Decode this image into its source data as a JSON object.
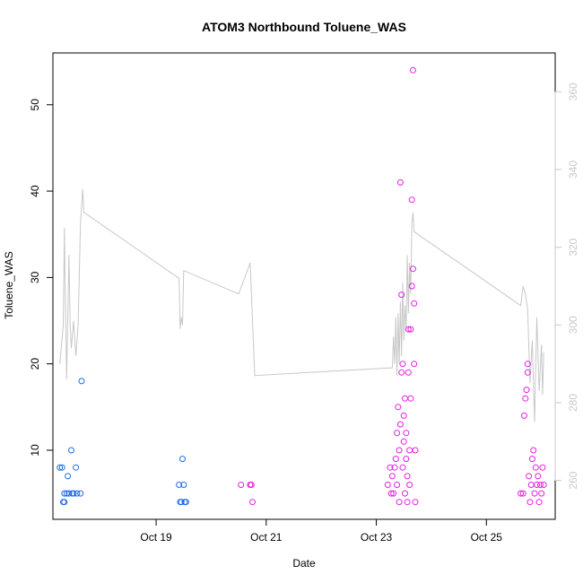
{
  "chart_data": {
    "type": "scatter",
    "title": "ATOM3 Northbound Toluene_WAS",
    "xlabel": "Date",
    "ylabel": "Toluene_WAS",
    "xlim": [
      "2016-10-17T03:00",
      "2016-10-26T06:00"
    ],
    "ylim": [
      2.0,
      56.0
    ],
    "y2lim": [
      250.0,
      370.0
    ],
    "x_ticks": [
      {
        "x": "2016-10-19T00:00",
        "label": "Oct 19"
      },
      {
        "x": "2016-10-21T00:00",
        "label": "Oct 21"
      },
      {
        "x": "2016-10-23T00:00",
        "label": "Oct 23"
      },
      {
        "x": "2016-10-25T00:00",
        "label": "Oct 25"
      }
    ],
    "y_ticks": [
      10,
      20,
      30,
      40,
      50
    ],
    "y2_ticks": [
      260,
      280,
      300,
      320,
      340,
      360
    ],
    "colors": {
      "point_low": "#1e6ce6",
      "point_high": "#e61ee6",
      "line": "#c8c8c8",
      "axis": "#000000"
    },
    "series": [
      {
        "type": "line",
        "axis": "right",
        "color": "#c8c8c8",
        "points": [
          [
            "2016-10-17T06:00",
            290
          ],
          [
            "2016-10-17T07:30",
            300
          ],
          [
            "2016-10-17T08:00",
            325
          ],
          [
            "2016-10-17T08:20",
            310
          ],
          [
            "2016-10-17T09:00",
            286
          ],
          [
            "2016-10-17T10:00",
            318
          ],
          [
            "2016-10-17T10:30",
            300
          ],
          [
            "2016-10-17T11:00",
            294
          ],
          [
            "2016-10-17T12:00",
            301
          ],
          [
            "2016-10-17T13:00",
            292
          ],
          [
            "2016-10-17T14:00",
            300
          ],
          [
            "2016-10-17T15:00",
            326
          ],
          [
            "2016-10-17T16:00",
            335
          ],
          [
            "2016-10-17T16:30",
            329
          ],
          [
            "2016-10-19T10:00",
            312
          ],
          [
            "2016-10-19T10:30",
            299
          ],
          [
            "2016-10-19T11:00",
            302
          ],
          [
            "2016-10-19T11:30",
            300
          ],
          [
            "2016-10-19T12:00",
            314
          ],
          [
            "2016-10-20T12:00",
            308
          ],
          [
            "2016-10-20T17:00",
            316
          ],
          [
            "2016-10-20T19:00",
            287
          ],
          [
            "2016-10-23T07:00",
            289
          ],
          [
            "2016-10-23T07:30",
            297
          ],
          [
            "2016-10-23T08:00",
            290
          ],
          [
            "2016-10-23T08:30",
            302
          ],
          [
            "2016-10-23T09:00",
            287
          ],
          [
            "2016-10-23T09:30",
            303
          ],
          [
            "2016-10-23T10:00",
            290
          ],
          [
            "2016-10-23T10:30",
            306
          ],
          [
            "2016-10-23T11:00",
            292
          ],
          [
            "2016-10-23T11:30",
            311
          ],
          [
            "2016-10-23T12:00",
            296
          ],
          [
            "2016-10-23T12:30",
            305
          ],
          [
            "2016-10-23T13:00",
            299
          ],
          [
            "2016-10-23T13:30",
            318
          ],
          [
            "2016-10-23T14:00",
            303
          ],
          [
            "2016-10-23T14:30",
            316
          ],
          [
            "2016-10-23T15:00",
            308
          ],
          [
            "2016-10-23T15:30",
            326
          ],
          [
            "2016-10-23T16:00",
            329
          ],
          [
            "2016-10-23T16:30",
            324
          ],
          [
            "2016-10-25T15:00",
            305
          ],
          [
            "2016-10-25T16:00",
            310
          ],
          [
            "2016-10-25T17:00",
            308
          ],
          [
            "2016-10-25T18:00",
            304
          ],
          [
            "2016-10-25T19:00",
            285
          ],
          [
            "2016-10-25T20:00",
            296
          ],
          [
            "2016-10-25T21:00",
            275
          ],
          [
            "2016-10-25T22:00",
            302
          ],
          [
            "2016-10-25T23:00",
            283
          ],
          [
            "2016-10-26T00:00",
            295
          ],
          [
            "2016-10-26T00:30",
            282
          ],
          [
            "2016-10-26T01:00",
            293
          ]
        ]
      },
      {
        "type": "scatter",
        "axis": "left",
        "color": "#1e6ce6",
        "points": [
          [
            "2016-10-17T06:00",
            8
          ],
          [
            "2016-10-17T07:00",
            8
          ],
          [
            "2016-10-17T07:30",
            4
          ],
          [
            "2016-10-17T08:00",
            4
          ],
          [
            "2016-10-17T08:00",
            5
          ],
          [
            "2016-10-17T09:00",
            5
          ],
          [
            "2016-10-17T09:30",
            7
          ],
          [
            "2016-10-17T10:00",
            5
          ],
          [
            "2016-10-17T11:00",
            10
          ],
          [
            "2016-10-17T11:30",
            5
          ],
          [
            "2016-10-17T12:00",
            5
          ],
          [
            "2016-10-17T13:00",
            8
          ],
          [
            "2016-10-17T13:30",
            5
          ],
          [
            "2016-10-17T15:00",
            5
          ],
          [
            "2016-10-17T15:30",
            18
          ],
          [
            "2016-10-19T10:00",
            6
          ],
          [
            "2016-10-19T10:30",
            4
          ],
          [
            "2016-10-19T11:00",
            4
          ],
          [
            "2016-10-19T11:30",
            9
          ],
          [
            "2016-10-19T12:00",
            6
          ],
          [
            "2016-10-19T12:30",
            4
          ],
          [
            "2016-10-19T13:00",
            4
          ]
        ]
      },
      {
        "type": "scatter",
        "axis": "left",
        "color": "#e61ee6",
        "points": [
          [
            "2016-10-20T13:00",
            6
          ],
          [
            "2016-10-20T17:00",
            6
          ],
          [
            "2016-10-20T17:30",
            6
          ],
          [
            "2016-10-20T18:00",
            4
          ],
          [
            "2016-10-23T05:00",
            6
          ],
          [
            "2016-10-23T06:00",
            8
          ],
          [
            "2016-10-23T06:30",
            5
          ],
          [
            "2016-10-23T07:00",
            7
          ],
          [
            "2016-10-23T07:30",
            5
          ],
          [
            "2016-10-23T08:00",
            8
          ],
          [
            "2016-10-23T08:30",
            9
          ],
          [
            "2016-10-23T09:00",
            6
          ],
          [
            "2016-10-23T09:00",
            12
          ],
          [
            "2016-10-23T09:30",
            15
          ],
          [
            "2016-10-23T10:00",
            4
          ],
          [
            "2016-10-23T10:00",
            10
          ],
          [
            "2016-10-23T10:30",
            13
          ],
          [
            "2016-10-23T10:30",
            41
          ],
          [
            "2016-10-23T11:00",
            19
          ],
          [
            "2016-10-23T11:00",
            28
          ],
          [
            "2016-10-23T11:30",
            20
          ],
          [
            "2016-10-23T11:30",
            8
          ],
          [
            "2016-10-23T12:00",
            11
          ],
          [
            "2016-10-23T12:00",
            14
          ],
          [
            "2016-10-23T12:30",
            16
          ],
          [
            "2016-10-23T12:30",
            5
          ],
          [
            "2016-10-23T13:00",
            9
          ],
          [
            "2016-10-23T13:00",
            12
          ],
          [
            "2016-10-23T13:30",
            4
          ],
          [
            "2016-10-23T13:30",
            7
          ],
          [
            "2016-10-23T14:00",
            24
          ],
          [
            "2016-10-23T14:00",
            19
          ],
          [
            "2016-10-23T14:30",
            10
          ],
          [
            "2016-10-23T14:30",
            6
          ],
          [
            "2016-10-23T15:00",
            16
          ],
          [
            "2016-10-23T15:00",
            24
          ],
          [
            "2016-10-23T15:30",
            29
          ],
          [
            "2016-10-23T15:30",
            39
          ],
          [
            "2016-10-23T16:00",
            54
          ],
          [
            "2016-10-23T16:00",
            31
          ],
          [
            "2016-10-23T16:30",
            27
          ],
          [
            "2016-10-23T16:30",
            20
          ],
          [
            "2016-10-23T17:00",
            10
          ],
          [
            "2016-10-23T17:00",
            4
          ],
          [
            "2016-10-25T15:00",
            5
          ],
          [
            "2016-10-25T16:00",
            5
          ],
          [
            "2016-10-25T16:30",
            14
          ],
          [
            "2016-10-25T17:00",
            16
          ],
          [
            "2016-10-25T17:30",
            17
          ],
          [
            "2016-10-25T18:00",
            19
          ],
          [
            "2016-10-25T18:00",
            20
          ],
          [
            "2016-10-25T18:30",
            7
          ],
          [
            "2016-10-25T19:00",
            4
          ],
          [
            "2016-10-25T19:30",
            6
          ],
          [
            "2016-10-25T20:00",
            9
          ],
          [
            "2016-10-25T20:30",
            10
          ],
          [
            "2016-10-25T21:00",
            5
          ],
          [
            "2016-10-25T21:30",
            8
          ],
          [
            "2016-10-25T22:00",
            6
          ],
          [
            "2016-10-25T22:30",
            7
          ],
          [
            "2016-10-25T23:00",
            4
          ],
          [
            "2016-10-25T23:30",
            6
          ],
          [
            "2016-10-26T00:00",
            5
          ],
          [
            "2016-10-26T00:30",
            8
          ],
          [
            "2016-10-26T01:00",
            6
          ]
        ]
      }
    ]
  }
}
